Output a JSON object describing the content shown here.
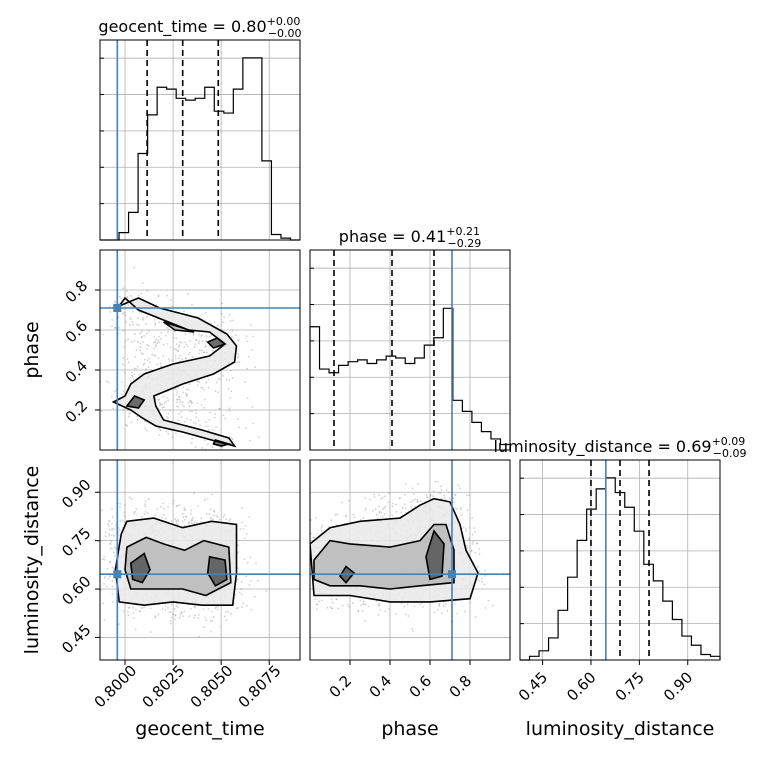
{
  "chart_data": {
    "type": "corner",
    "parameters": [
      "geocent_time",
      "phase",
      "luminosity_distance"
    ],
    "titles": [
      {
        "param": "geocent_time",
        "median": "0.80",
        "plus": "+0.00",
        "minus": "−0.00"
      },
      {
        "param": "phase",
        "median": "0.41",
        "plus": "+0.21",
        "minus": "−0.29"
      },
      {
        "param": "luminosity_distance",
        "median": "0.69",
        "plus": "+0.09",
        "minus": "−0.09"
      }
    ],
    "truths": {
      "geocent_time": 0.7996,
      "phase": 0.71,
      "luminosity_distance": 0.646
    },
    "ranges": {
      "geocent_time": [
        0.7987,
        0.8091
      ],
      "phase": [
        0.0,
        1.0
      ],
      "luminosity_distance": [
        0.38,
        1.0
      ]
    },
    "ticks": {
      "geocent_time": {
        "values": [
          0.8,
          0.8025,
          0.805,
          0.8075
        ],
        "labels": [
          "0.8000",
          "0.8025",
          "0.8050",
          "0.8075"
        ]
      },
      "phase": {
        "values": [
          0.2,
          0.4,
          0.6,
          0.8
        ],
        "labels": [
          "0.2",
          "0.4",
          "0.6",
          "0.8"
        ]
      },
      "luminosity_distance": {
        "values": [
          0.45,
          0.6,
          0.75,
          0.9
        ],
        "labels": [
          "0.45",
          "0.60",
          "0.75",
          "0.90"
        ]
      }
    },
    "quantiles": {
      "geocent_time": [
        0.80115,
        0.803,
        0.80485
      ],
      "phase": [
        0.12,
        0.41,
        0.62
      ],
      "luminosity_distance": [
        0.6,
        0.69,
        0.78
      ]
    },
    "histograms": {
      "geocent_time": [
        0.0,
        0.0,
        0.04,
        0.15,
        0.47,
        0.68,
        0.83,
        0.82,
        0.77,
        0.76,
        0.77,
        0.83,
        0.7,
        0.69,
        0.82,
        0.99,
        0.99,
        0.43,
        0.03,
        0.01,
        0.0
      ],
      "phase": [
        0.67,
        0.44,
        0.42,
        0.46,
        0.48,
        0.49,
        0.47,
        0.49,
        0.51,
        0.5,
        0.47,
        0.5,
        0.57,
        0.61,
        0.77,
        0.27,
        0.21,
        0.15,
        0.1,
        0.06,
        0.03
      ],
      "luminosity_distance": [
        0.0,
        0.02,
        0.05,
        0.12,
        0.27,
        0.45,
        0.65,
        0.82,
        0.93,
        0.99,
        0.91,
        0.83,
        0.7,
        0.52,
        0.43,
        0.32,
        0.22,
        0.13,
        0.08,
        0.03,
        0.02
      ]
    },
    "contours_phase_vs_geocent_time": [
      [
        [
          0.7997,
          0.72
        ],
        [
          0.8,
          0.76
        ],
        [
          0.8007,
          0.7
        ],
        [
          0.802,
          0.65
        ],
        [
          0.8033,
          0.6
        ],
        [
          0.8044,
          0.59
        ],
        [
          0.8052,
          0.53
        ],
        [
          0.8044,
          0.47
        ],
        [
          0.8025,
          0.43
        ],
        [
          0.801,
          0.38
        ],
        [
          0.8003,
          0.33
        ],
        [
          0.8,
          0.27
        ],
        [
          0.7994,
          0.24
        ],
        [
          0.8003,
          0.2
        ],
        [
          0.8009,
          0.16
        ],
        [
          0.8016,
          0.12
        ],
        [
          0.803,
          0.09
        ],
        [
          0.8045,
          0.05
        ],
        [
          0.8057,
          0.02
        ],
        [
          0.8054,
          0.06
        ],
        [
          0.804,
          0.1
        ],
        [
          0.802,
          0.15
        ],
        [
          0.8016,
          0.22
        ],
        [
          0.8015,
          0.27
        ],
        [
          0.803,
          0.33
        ],
        [
          0.8046,
          0.38
        ],
        [
          0.8057,
          0.44
        ],
        [
          0.8058,
          0.52
        ],
        [
          0.8053,
          0.58
        ],
        [
          0.8038,
          0.66
        ],
        [
          0.8018,
          0.71
        ],
        [
          0.8007,
          0.76
        ],
        [
          0.7997,
          0.72
        ]
      ],
      [
        [
          0.802,
          0.64
        ],
        [
          0.803,
          0.61
        ],
        [
          0.8036,
          0.59
        ],
        [
          0.8026,
          0.6
        ],
        [
          0.802,
          0.64
        ]
      ],
      [
        [
          0.8048,
          0.56
        ],
        [
          0.8052,
          0.53
        ],
        [
          0.8046,
          0.51
        ],
        [
          0.8043,
          0.54
        ],
        [
          0.8048,
          0.56
        ]
      ],
      [
        [
          0.8001,
          0.22
        ],
        [
          0.8005,
          0.27
        ],
        [
          0.801,
          0.25
        ],
        [
          0.8007,
          0.21
        ],
        [
          0.8001,
          0.22
        ]
      ],
      [
        [
          0.8047,
          0.05
        ],
        [
          0.8054,
          0.03
        ],
        [
          0.805,
          0.02
        ],
        [
          0.8046,
          0.03
        ],
        [
          0.8047,
          0.05
        ]
      ]
    ],
    "contours_luminosity_distance_vs_geocent_time": [
      [
        [
          0.7998,
          0.77
        ],
        [
          0.8001,
          0.81
        ],
        [
          0.8015,
          0.82
        ],
        [
          0.803,
          0.79
        ],
        [
          0.8045,
          0.81
        ],
        [
          0.8058,
          0.8
        ],
        [
          0.8058,
          0.65
        ],
        [
          0.8056,
          0.55
        ],
        [
          0.804,
          0.55
        ],
        [
          0.8025,
          0.56
        ],
        [
          0.801,
          0.55
        ],
        [
          0.7997,
          0.56
        ],
        [
          0.7995,
          0.66
        ],
        [
          0.7998,
          0.77
        ]
      ],
      [
        [
          0.8001,
          0.73
        ],
        [
          0.8011,
          0.76
        ],
        [
          0.802,
          0.74
        ],
        [
          0.8031,
          0.72
        ],
        [
          0.8041,
          0.75
        ],
        [
          0.8054,
          0.73
        ],
        [
          0.8055,
          0.62
        ],
        [
          0.8042,
          0.58
        ],
        [
          0.803,
          0.6
        ],
        [
          0.8018,
          0.6
        ],
        [
          0.8003,
          0.6
        ],
        [
          0.8,
          0.66
        ],
        [
          0.8001,
          0.73
        ]
      ],
      [
        [
          0.8003,
          0.68
        ],
        [
          0.801,
          0.71
        ],
        [
          0.8013,
          0.66
        ],
        [
          0.8009,
          0.62
        ],
        [
          0.8004,
          0.63
        ],
        [
          0.8003,
          0.68
        ]
      ],
      [
        [
          0.8044,
          0.7
        ],
        [
          0.8052,
          0.69
        ],
        [
          0.8053,
          0.63
        ],
        [
          0.8047,
          0.61
        ],
        [
          0.8043,
          0.65
        ],
        [
          0.8044,
          0.7
        ]
      ]
    ],
    "contours_luminosity_distance_vs_phase": [
      [
        [
          0.0,
          0.74
        ],
        [
          0.1,
          0.79
        ],
        [
          0.25,
          0.81
        ],
        [
          0.45,
          0.82
        ],
        [
          0.55,
          0.86
        ],
        [
          0.62,
          0.88
        ],
        [
          0.7,
          0.87
        ],
        [
          0.75,
          0.8
        ],
        [
          0.78,
          0.72
        ],
        [
          0.84,
          0.65
        ],
        [
          0.8,
          0.57
        ],
        [
          0.6,
          0.56
        ],
        [
          0.4,
          0.56
        ],
        [
          0.2,
          0.58
        ],
        [
          0.02,
          0.58
        ],
        [
          0.0,
          0.74
        ]
      ],
      [
        [
          0.02,
          0.69
        ],
        [
          0.1,
          0.75
        ],
        [
          0.2,
          0.74
        ],
        [
          0.4,
          0.73
        ],
        [
          0.55,
          0.75
        ],
        [
          0.62,
          0.8
        ],
        [
          0.68,
          0.8
        ],
        [
          0.72,
          0.72
        ],
        [
          0.72,
          0.62
        ],
        [
          0.55,
          0.61
        ],
        [
          0.4,
          0.6
        ],
        [
          0.25,
          0.61
        ],
        [
          0.1,
          0.61
        ],
        [
          0.02,
          0.63
        ],
        [
          0.02,
          0.69
        ]
      ],
      [
        [
          0.58,
          0.7
        ],
        [
          0.62,
          0.78
        ],
        [
          0.67,
          0.74
        ],
        [
          0.66,
          0.64
        ],
        [
          0.6,
          0.63
        ],
        [
          0.58,
          0.7
        ]
      ],
      [
        [
          0.15,
          0.64
        ],
        [
          0.18,
          0.67
        ],
        [
          0.22,
          0.65
        ],
        [
          0.18,
          0.62
        ],
        [
          0.15,
          0.64
        ]
      ]
    ]
  }
}
